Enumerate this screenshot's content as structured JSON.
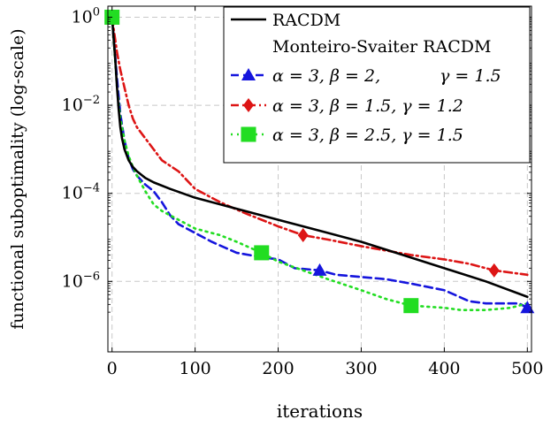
{
  "chart_data": {
    "type": "line",
    "xlabel": "iterations",
    "ylabel": "functional suboptimality (log-scale)",
    "xlim": [
      -5,
      505
    ],
    "ylim_log10": [
      -7.6,
      0.25
    ],
    "y_scale": "log",
    "grid": true,
    "legend_placement": "top-right",
    "x_ticks": [
      0,
      100,
      200,
      300,
      400,
      500
    ],
    "x_tick_labels": [
      "0",
      "100",
      "200",
      "300",
      "400",
      "500"
    ],
    "y_ticks_log10": [
      0,
      -2,
      -4,
      -6
    ],
    "y_tick_base": "10",
    "y_tick_exponents": [
      "0",
      "−2",
      "−4",
      "−6"
    ],
    "series": [
      {
        "name": "RACDM",
        "color": "#000000",
        "dash": "solid",
        "marker": "none",
        "x": [
          0,
          2,
          4,
          6,
          8,
          10,
          12,
          15,
          20,
          25,
          30,
          40,
          50,
          70,
          100,
          150,
          200,
          250,
          300,
          350,
          400,
          450,
          500
        ],
        "log10_y": [
          0,
          -0.5,
          -1.0,
          -1.6,
          -2.1,
          -2.5,
          -2.75,
          -3.0,
          -3.25,
          -3.4,
          -3.5,
          -3.65,
          -3.75,
          -3.9,
          -4.1,
          -4.35,
          -4.6,
          -4.85,
          -5.1,
          -5.4,
          -5.7,
          -6.0,
          -6.35
        ]
      },
      {
        "name": "Monteiro-Svaiter RACDM",
        "color": "#000000",
        "dash": "none",
        "marker": "none",
        "x": [],
        "log10_y": []
      },
      {
        "name": "α = 3, β = 2,   γ = 1.5",
        "legend_parts": [
          "α = 3, β = 2,",
          "γ = 1.5"
        ],
        "color": "#1515dd",
        "dash": "dashed",
        "marker": "triangle",
        "markers_at": [
          0,
          250,
          500
        ],
        "x": [
          0,
          3,
          6,
          10,
          15,
          20,
          25,
          30,
          40,
          50,
          60,
          70,
          80,
          100,
          120,
          150,
          180,
          200,
          220,
          250,
          270,
          300,
          330,
          360,
          400,
          430,
          450,
          470,
          490,
          500
        ],
        "log10_y": [
          0,
          -0.7,
          -1.4,
          -2.2,
          -2.8,
          -3.2,
          -3.45,
          -3.6,
          -3.8,
          -3.95,
          -4.2,
          -4.5,
          -4.7,
          -4.9,
          -5.1,
          -5.35,
          -5.45,
          -5.5,
          -5.7,
          -5.75,
          -5.85,
          -5.9,
          -5.95,
          -6.05,
          -6.2,
          -6.45,
          -6.5,
          -6.5,
          -6.5,
          -6.6
        ]
      },
      {
        "name": "α = 3, β = 1.5, γ = 1.2",
        "color": "#dd1515",
        "dash": "dashdot",
        "marker": "diamond",
        "markers_at": [
          0,
          230,
          460
        ],
        "x": [
          0,
          3,
          6,
          10,
          15,
          20,
          25,
          30,
          40,
          50,
          60,
          80,
          100,
          130,
          160,
          200,
          230,
          260,
          300,
          330,
          360,
          400,
          430,
          460,
          500
        ],
        "log10_y": [
          0,
          -0.4,
          -0.8,
          -1.2,
          -1.6,
          -2.0,
          -2.3,
          -2.5,
          -2.75,
          -3.0,
          -3.25,
          -3.5,
          -3.9,
          -4.2,
          -4.45,
          -4.75,
          -4.95,
          -5.05,
          -5.2,
          -5.3,
          -5.4,
          -5.5,
          -5.6,
          -5.75,
          -5.85
        ]
      },
      {
        "name": "α = 3, β = 2.5, γ = 1.5",
        "color": "#22dd22",
        "dash": "dotted",
        "marker": "square",
        "markers_at": [
          0,
          180,
          360
        ],
        "x": [
          0,
          3,
          6,
          10,
          15,
          20,
          25,
          30,
          40,
          50,
          60,
          80,
          100,
          130,
          150,
          180,
          200,
          230,
          260,
          300,
          330,
          360,
          400,
          420,
          450,
          480,
          500
        ],
        "log10_y": [
          0,
          -0.8,
          -1.6,
          -2.3,
          -2.8,
          -3.15,
          -3.4,
          -3.6,
          -3.95,
          -4.25,
          -4.4,
          -4.6,
          -4.8,
          -4.95,
          -5.1,
          -5.35,
          -5.55,
          -5.75,
          -5.95,
          -6.2,
          -6.4,
          -6.55,
          -6.6,
          -6.65,
          -6.65,
          -6.6,
          -6.5
        ]
      }
    ]
  }
}
